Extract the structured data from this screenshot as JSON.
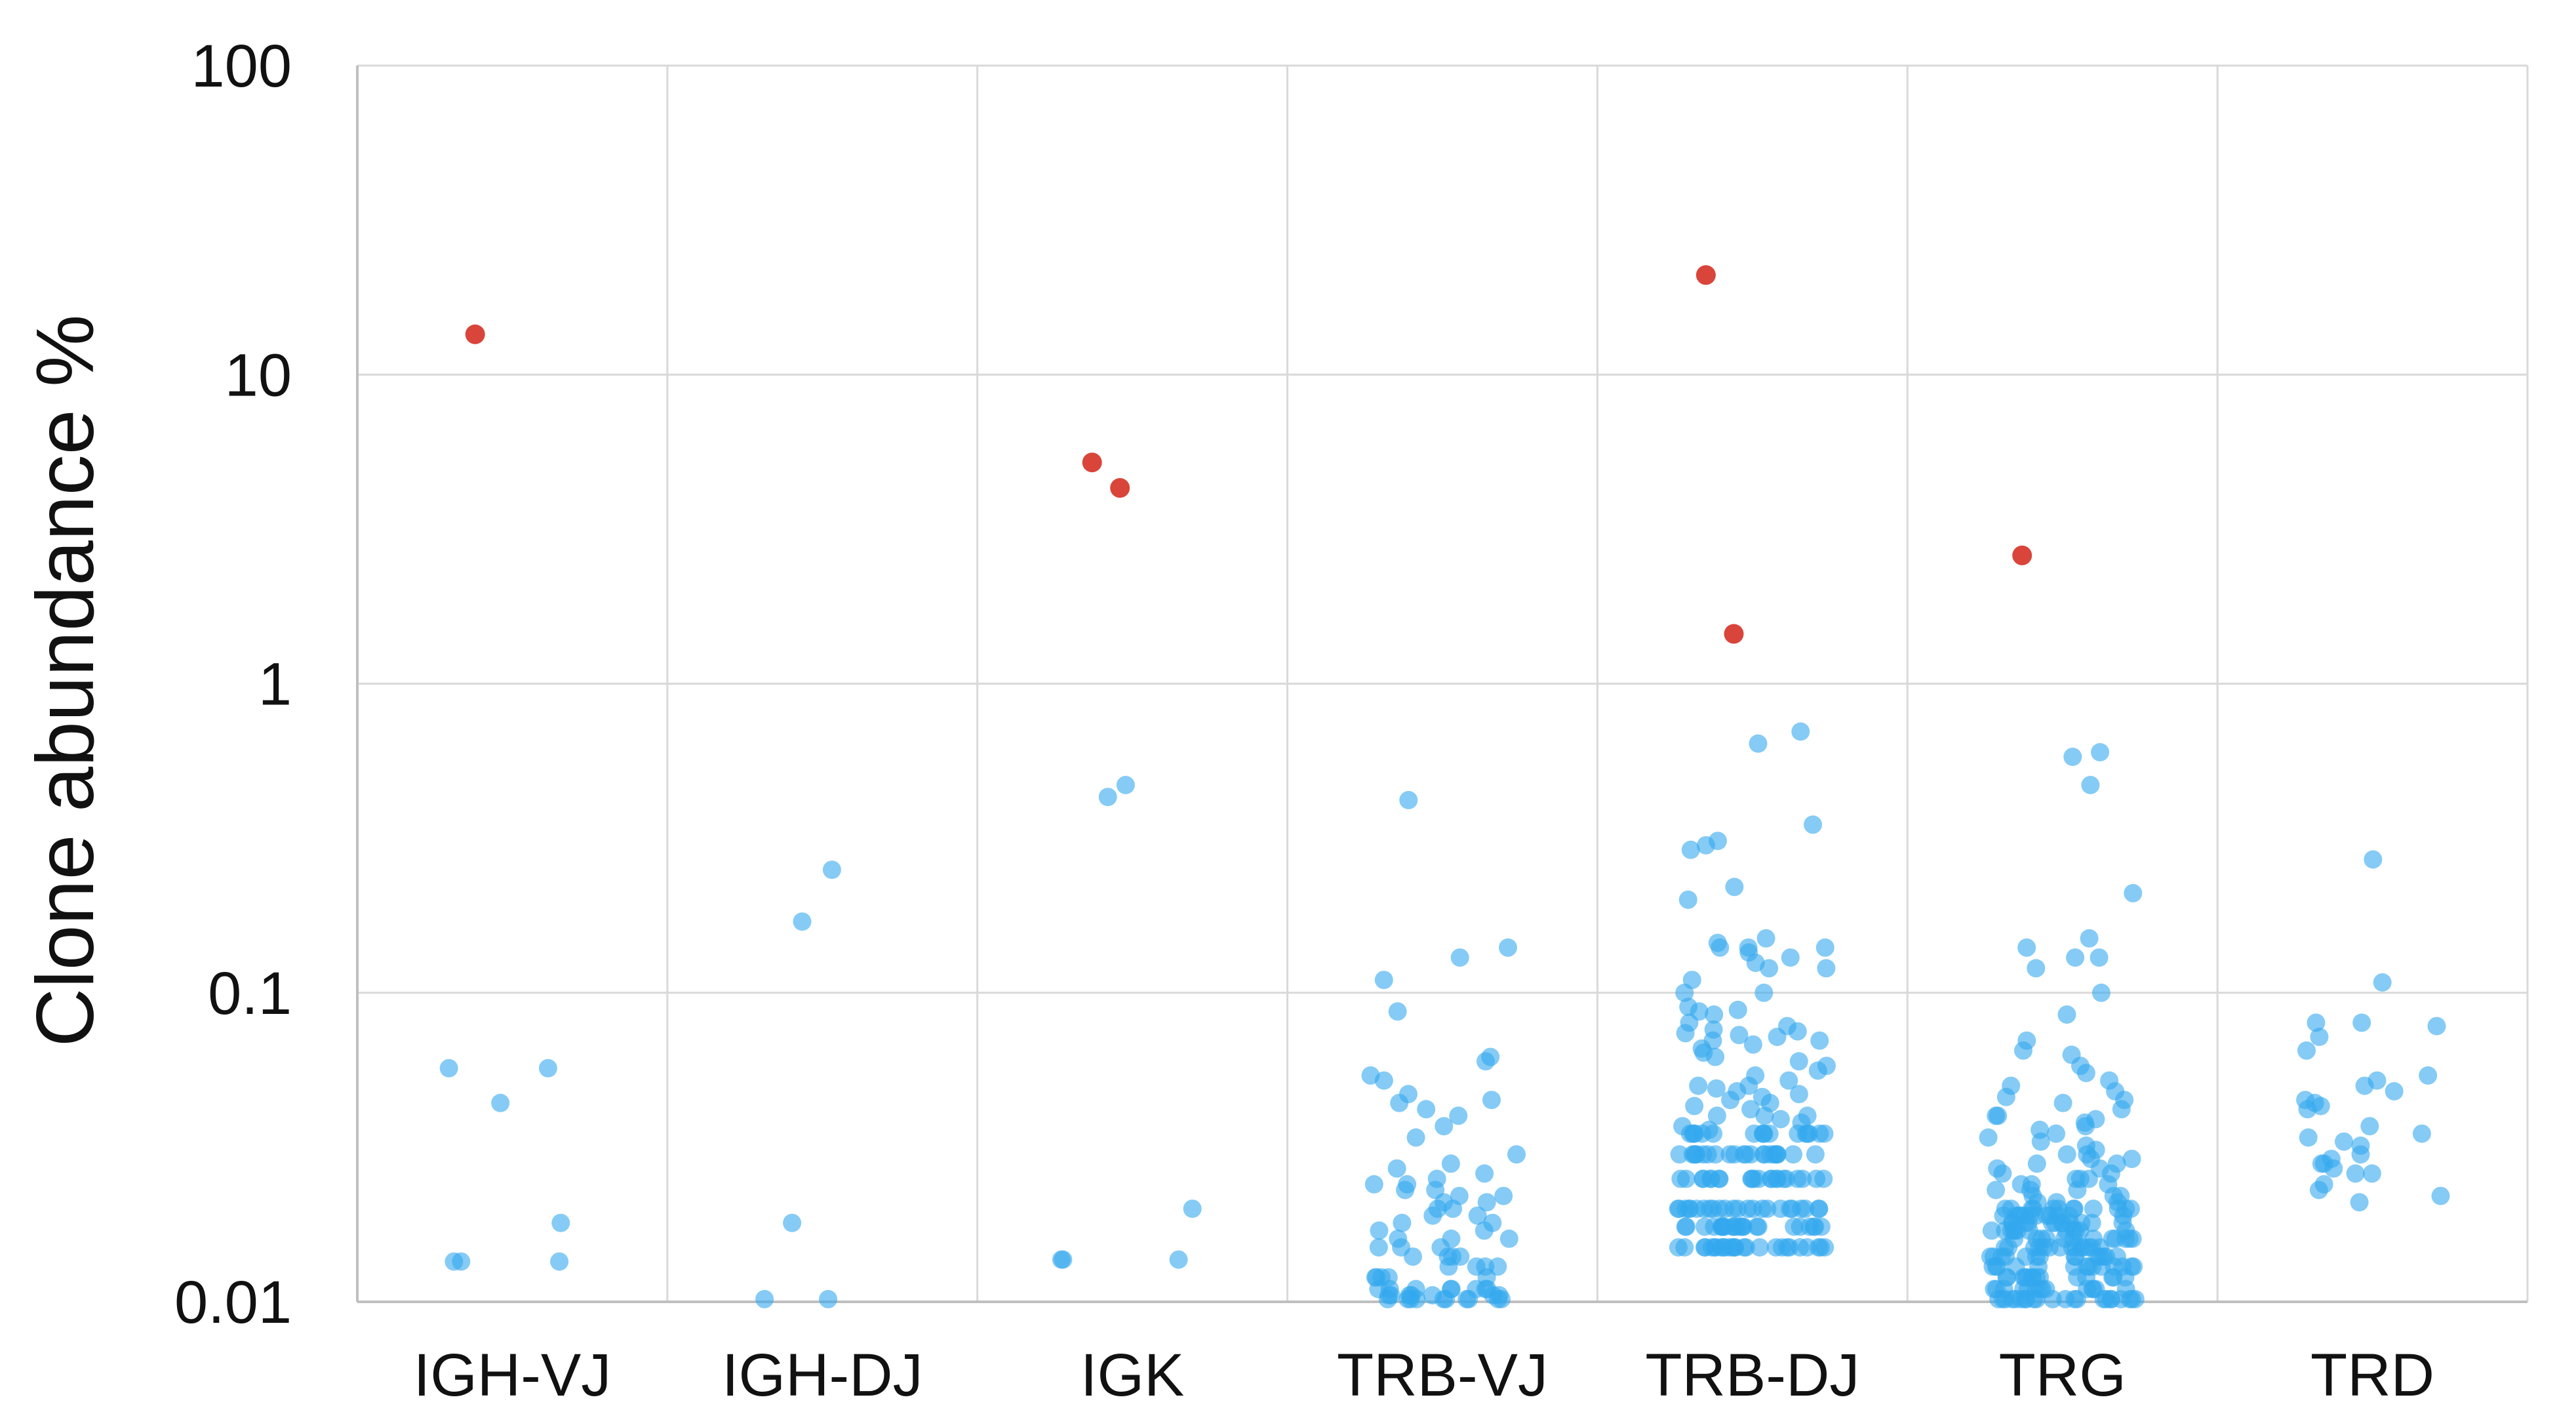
{
  "chart_data": {
    "type": "scatter",
    "title": "",
    "xlabel": "",
    "ylabel": "Clone abundance %",
    "yscale": "log",
    "ylim": [
      0.01,
      100
    ],
    "yticks": [
      0.01,
      0.1,
      1,
      10,
      100
    ],
    "ytick_labels": [
      "0.01",
      "0.1",
      "1",
      "10",
      "100"
    ],
    "grid": true,
    "legend": "none",
    "colors": {
      "dominant": "#d9453a",
      "other": "#33a9ee"
    },
    "categories": [
      "IGH-VJ",
      "IGH-DJ",
      "IGK",
      "TRB-VJ",
      "TRB-DJ",
      "TRG",
      "TRD"
    ],
    "series": [
      {
        "name": "dominant",
        "color": "#d9453a",
        "points": [
          {
            "category": "IGH-VJ",
            "y": 13.5
          },
          {
            "category": "IGK",
            "y": 5.2
          },
          {
            "category": "IGK",
            "y": 4.3
          },
          {
            "category": "TRB-DJ",
            "y": 21
          },
          {
            "category": "TRB-DJ",
            "y": 1.45
          },
          {
            "category": "TRG",
            "y": 2.6
          }
        ]
      },
      {
        "name": "other",
        "color": "#33a9ee",
        "points_by_category": {
          "IGH-VJ": [
            0.057,
            0.057,
            0.044,
            0.018,
            0.0135,
            0.0135,
            0.0135
          ],
          "IGH-DJ": [
            0.25,
            0.17,
            0.018,
            0.0102,
            0.0102
          ],
          "IGK": [
            0.47,
            0.43,
            0.02,
            0.0137,
            0.0137,
            0.0137
          ],
          "TRB-VJ": [
            0.42,
            0.14,
            0.13,
            0.11,
            0.087,
            0.062,
            0.06,
            0.054,
            0.052,
            0.047,
            0.045,
            0.044,
            0.042,
            0.04,
            0.037,
            0.034,
            0.03,
            0.028,
            0.027,
            0.026,
            0.025,
            0.024,
            0.024,
            0.023,
            0.023,
            0.022,
            0.022,
            0.021,
            0.021,
            0.02,
            0.02,
            0.019,
            0.019,
            0.018,
            0.018,
            0.017,
            0.017,
            0.016,
            0.016,
            0.016,
            0.015,
            0.015,
            0.015,
            0.014,
            0.014,
            0.014,
            0.014,
            0.013,
            0.013,
            0.013,
            0.013,
            0.012,
            0.012,
            0.012,
            0.012,
            0.012,
            0.011,
            0.011,
            0.011,
            0.011,
            0.011,
            0.011,
            0.011,
            0.011,
            0.0105,
            0.0105,
            0.0105,
            0.0105,
            0.0105,
            0.0105,
            0.0105,
            0.0102,
            0.0102,
            0.0102,
            0.0102,
            0.0102,
            0.0102,
            0.0102,
            0.0102,
            0.0102,
            0.0102
          ],
          "TRB-DJ": [
            0.7,
            0.64,
            0.35,
            0.31,
            0.3,
            0.29,
            0.22,
            0.2,
            0.15,
            0.145,
            0.14,
            0.14,
            0.14,
            0.135,
            0.13,
            0.125,
            0.12,
            0.12,
            0.11,
            0.1,
            0.1,
            0.09,
            0.088,
            0.087,
            0.085,
            0.08,
            0.078,
            0.076,
            0.075,
            0.074,
            0.073,
            0.072,
            0.07,
            0.07,
            0.068,
            0.066,
            0.064,
            0.062,
            0.06,
            0.058,
            0.056,
            0.054,
            0.052,
            0.05,
            0.05,
            0.049,
            0.048,
            0.047,
            0.046,
            0.045,
            0.044,
            0.043,
            0.042,
            0.04,
            0.04,
            0.04,
            0.039,
            0.038,
            0.037,
            0.036,
            0.035,
            0.035,
            0.035,
            0.035,
            0.035,
            0.035,
            0.035,
            0.035,
            0.035,
            0.035,
            0.035,
            0.035,
            0.035,
            0.035,
            0.035,
            0.035,
            0.035,
            0.03,
            0.03,
            0.03,
            0.03,
            0.03,
            0.03,
            0.03,
            0.03,
            0.03,
            0.03,
            0.03,
            0.03,
            0.03,
            0.03,
            0.03,
            0.03,
            0.03,
            0.03,
            0.03,
            0.03,
            0.03,
            0.03,
            0.025,
            0.025,
            0.025,
            0.025,
            0.025,
            0.025,
            0.025,
            0.025,
            0.025,
            0.025,
            0.025,
            0.025,
            0.025,
            0.025,
            0.025,
            0.025,
            0.025,
            0.025,
            0.025,
            0.025,
            0.025,
            0.025,
            0.02,
            0.02,
            0.02,
            0.02,
            0.02,
            0.02,
            0.02,
            0.02,
            0.02,
            0.02,
            0.02,
            0.02,
            0.02,
            0.02,
            0.02,
            0.02,
            0.02,
            0.02,
            0.02,
            0.02,
            0.02,
            0.02,
            0.02,
            0.02,
            0.0175,
            0.0175,
            0.0175,
            0.0175,
            0.0175,
            0.0175,
            0.0175,
            0.0175,
            0.0175,
            0.0175,
            0.0175,
            0.0175,
            0.0175,
            0.0175,
            0.0175,
            0.0175,
            0.0175,
            0.0175,
            0.0175,
            0.0175,
            0.0175,
            0.0175,
            0.0175,
            0.0175,
            0.015,
            0.015,
            0.015,
            0.015,
            0.015,
            0.015,
            0.015,
            0.015,
            0.015,
            0.015,
            0.015,
            0.015,
            0.015,
            0.015,
            0.015,
            0.015,
            0.015,
            0.015,
            0.015,
            0.015,
            0.015,
            0.015,
            0.015,
            0.015,
            0.015,
            0.015
          ],
          "TRG": [
            0.6,
            0.58,
            0.47,
            0.21,
            0.15,
            0.14,
            0.13,
            0.13,
            0.12,
            0.1,
            0.085,
            0.07,
            0.065,
            0.063,
            0.058,
            0.055,
            0.052,
            0.05,
            0.048,
            0.046,
            0.045,
            0.044,
            0.042,
            0.04,
            0.04,
            0.039,
            0.038,
            0.037,
            0.036,
            0.035,
            0.034,
            0.033,
            0.032,
            0.031,
            0.03,
            0.03,
            0.029,
            0.029,
            0.028,
            0.028,
            0.027,
            0.027,
            0.026,
            0.026,
            0.025,
            0.025,
            0.025,
            0.024,
            0.024,
            0.024,
            0.023,
            0.023,
            0.023,
            0.022,
            0.022,
            0.022,
            0.021,
            0.021,
            0.021,
            0.02,
            0.02,
            0.02,
            0.02,
            0.02,
            0.02,
            0.02,
            0.02,
            0.02,
            0.02,
            0.02,
            0.02,
            0.019,
            0.019,
            0.019,
            0.019,
            0.019,
            0.019,
            0.019,
            0.019,
            0.019,
            0.019,
            0.019,
            0.019,
            0.018,
            0.018,
            0.018,
            0.018,
            0.018,
            0.018,
            0.018,
            0.018,
            0.018,
            0.018,
            0.018,
            0.018,
            0.017,
            0.017,
            0.017,
            0.017,
            0.017,
            0.017,
            0.017,
            0.017,
            0.017,
            0.017,
            0.017,
            0.017,
            0.016,
            0.016,
            0.016,
            0.016,
            0.016,
            0.016,
            0.016,
            0.016,
            0.016,
            0.016,
            0.016,
            0.016,
            0.015,
            0.015,
            0.015,
            0.015,
            0.015,
            0.015,
            0.015,
            0.015,
            0.015,
            0.015,
            0.015,
            0.015,
            0.015,
            0.015,
            0.014,
            0.014,
            0.014,
            0.014,
            0.014,
            0.014,
            0.014,
            0.014,
            0.014,
            0.014,
            0.014,
            0.014,
            0.014,
            0.014,
            0.013,
            0.013,
            0.013,
            0.013,
            0.013,
            0.013,
            0.013,
            0.013,
            0.013,
            0.013,
            0.013,
            0.013,
            0.013,
            0.013,
            0.012,
            0.012,
            0.012,
            0.012,
            0.012,
            0.012,
            0.012,
            0.012,
            0.012,
            0.012,
            0.012,
            0.012,
            0.012,
            0.012,
            0.011,
            0.011,
            0.011,
            0.011,
            0.011,
            0.011,
            0.011,
            0.011,
            0.011,
            0.011,
            0.011,
            0.011,
            0.011,
            0.011,
            0.0102,
            0.0102,
            0.0102,
            0.0102,
            0.0102,
            0.0102,
            0.0102,
            0.0102,
            0.0102,
            0.0102,
            0.0102,
            0.0102,
            0.0102,
            0.0102,
            0.0102,
            0.0102,
            0.0102,
            0.0102,
            0.0102,
            0.0102,
            0.0102,
            0.0102
          ],
          "TRD": [
            0.27,
            0.108,
            0.08,
            0.08,
            0.078,
            0.072,
            0.065,
            0.054,
            0.052,
            0.05,
            0.048,
            0.045,
            0.044,
            0.043,
            0.042,
            0.037,
            0.035,
            0.034,
            0.033,
            0.032,
            0.03,
            0.029,
            0.028,
            0.028,
            0.027,
            0.026,
            0.026,
            0.024,
            0.023,
            0.022,
            0.021
          ]
        }
      }
    ]
  }
}
